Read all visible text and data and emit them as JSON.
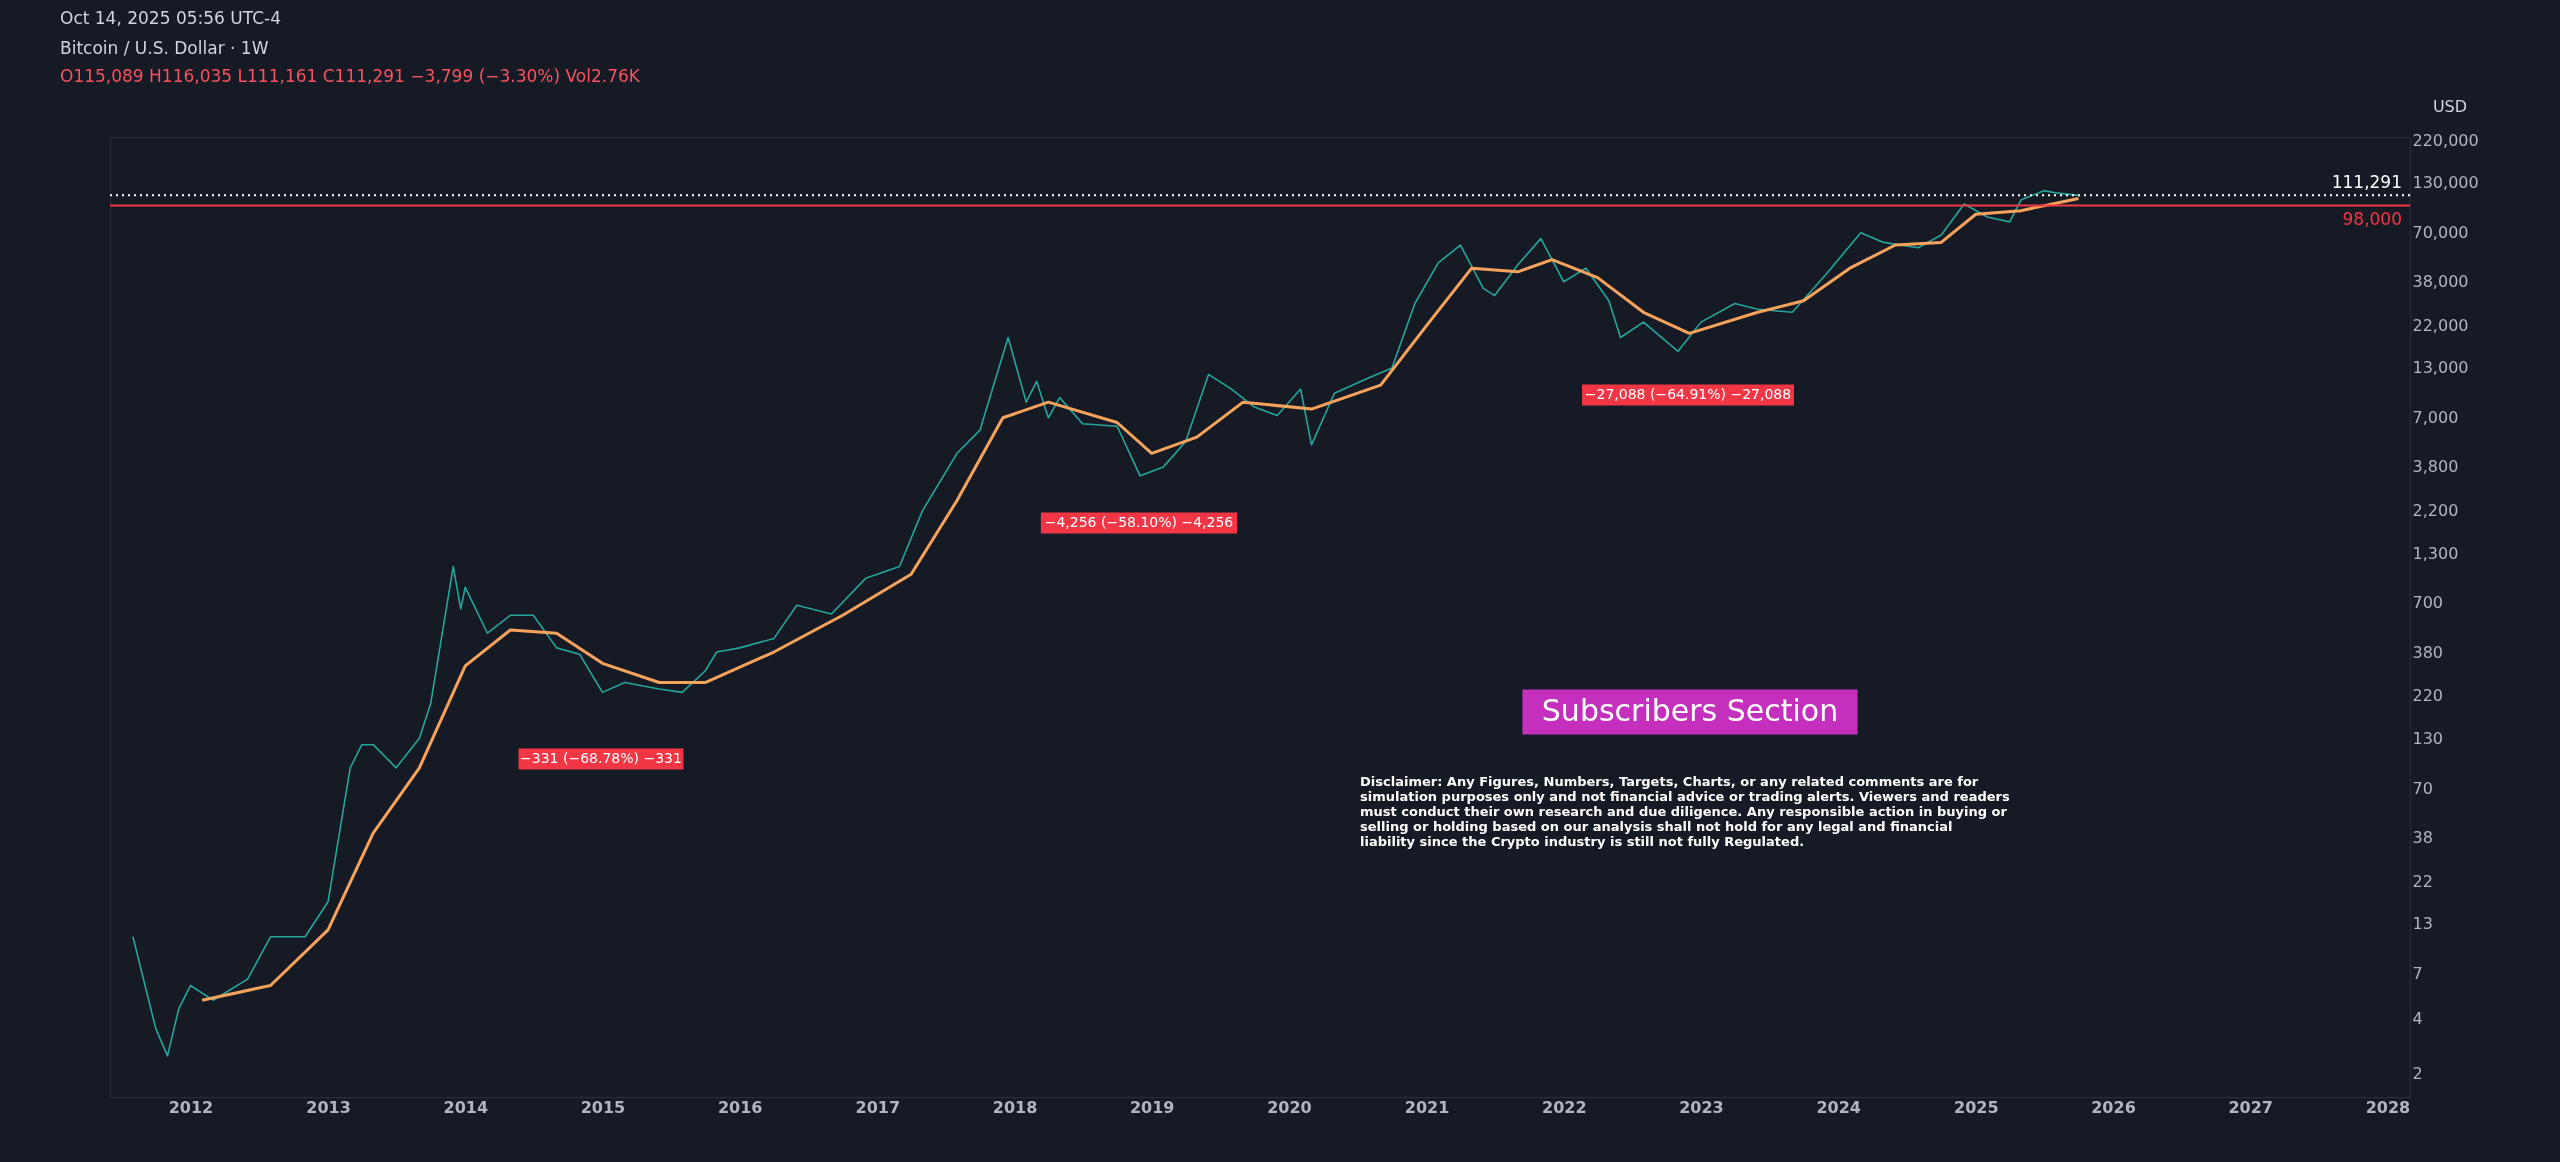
{
  "chart_data": {
    "type": "line",
    "title": "Bitcoin / U.S. Dollar · 1W",
    "subtitle": "O115,089 H116,035 L111,161 C111,291 −3,799 (−3.30%) Vol2.76K",
    "annotations": [
      "Oct 14, 2025 05:56 UTC-4",
      "USD",
      "Subscribers Section",
      "Disclaimer: Any Figures, Numbers, Targets, Charts, or any related comments are for simulation purposes only and not financial advice or trading alerts. Viewers and readers must conduct their own research and due diligence. Any responsible action in buying or selling or holding based on our analysis shall not hold for any legal and financial liability since the Crypto industry is still not fully Regulated.",
      "−331 (−68.78%) −331",
      "−4,256 (−58.10%) −4,256",
      "−27,088 (−64.91%) −27,088"
    ],
    "log": true,
    "grid": false,
    "line_style": "solid",
    "marker": "none",
    "xlim": [
      "2011-06",
      "2028-03"
    ],
    "xticks": [
      "2012",
      "2013",
      "2014",
      "2015",
      "2016",
      "2017",
      "2018",
      "2019",
      "2020",
      "2021",
      "2022",
      "2023",
      "2024",
      "2025",
      "2026",
      "2027",
      "2028"
    ],
    "ylim": [
      1.5,
      230000
    ],
    "yticks": [
      2,
      4,
      7,
      13,
      22,
      38,
      70,
      130,
      220,
      380,
      700,
      {
        "value": 1300,
        "label": "1,300"
      },
      {
        "value": 2200,
        "label": "2,200"
      },
      {
        "value": 3800,
        "label": "3,800"
      },
      {
        "value": 7000,
        "label": "7,000"
      },
      {
        "value": 13000,
        "label": "13,000"
      },
      {
        "value": 22000,
        "label": "22,000"
      },
      {
        "value": 38000,
        "label": "38,000"
      },
      {
        "value": 70000,
        "label": "70,000"
      },
      {
        "value": 130000,
        "label": "130,000"
      },
      {
        "value": 220000,
        "label": "220,000"
      }
    ],
    "ref_lines": [
      {
        "axis": "y",
        "value": 111291,
        "label": "111,291",
        "color": "#ffffff",
        "line_style": "dotted"
      },
      {
        "axis": "y",
        "value": 98000,
        "label": "98,000",
        "color": "#f23645",
        "line_style": "solid"
      }
    ],
    "series": [
      {
        "color": "#26a69a",
        "x": [
          "2011-08",
          "2011-10",
          "2011-11",
          "2011-12",
          "2012-01",
          "2012-03",
          "2012-06",
          "2012-08",
          "2012-11",
          "2013-01",
          "2013-03",
          "2013-04",
          "2013-05",
          "2013-07",
          "2013-09",
          "2013-10",
          "2013-11-30",
          "2013-12-20",
          "2014-01",
          "2014-03",
          "2014-05",
          "2014-07",
          "2014-09",
          "2014-11",
          "2015-01",
          "2015-03",
          "2015-06",
          "2015-08",
          "2015-10",
          "2015-11",
          "2016-01",
          "2016-04",
          "2016-06",
          "2016-09",
          "2016-12",
          "2017-03",
          "2017-05",
          "2017-08",
          "2017-10",
          "2017-12-15",
          "2018-02",
          "2018-03",
          "2018-04",
          "2018-05",
          "2018-07",
          "2018-10",
          "2018-12",
          "2019-02",
          "2019-04",
          "2019-06",
          "2019-08",
          "2019-10",
          "2019-12",
          "2020-02",
          "2020-03",
          "2020-05",
          "2020-08",
          "2020-10",
          "2020-12",
          "2021-02",
          "2021-04",
          "2021-06",
          "2021-07",
          "2021-09",
          "2021-11",
          "2022-01",
          "2022-03",
          "2022-05",
          "2022-06",
          "2022-08",
          "2022-11",
          "2023-01",
          "2023-04",
          "2023-06",
          "2023-09",
          "2023-12",
          "2024-03",
          "2024-05",
          "2024-08",
          "2024-10",
          "2024-12",
          "2025-02",
          "2025-04",
          "2025-05",
          "2025-07",
          "2025-08",
          "2025-10"
        ],
        "values": [
          11,
          3.5,
          2.5,
          4.5,
          6,
          5,
          6.5,
          11,
          11,
          17,
          90,
          120,
          120,
          90,
          130,
          200,
          1100,
          650,
          850,
          480,
          600,
          600,
          400,
          370,
          230,
          260,
          240,
          230,
          300,
          380,
          400,
          450,
          680,
          610,
          950,
          1100,
          2200,
          4500,
          6000,
          19000,
          8500,
          11000,
          7000,
          9000,
          6500,
          6300,
          3400,
          3800,
          5200,
          12000,
          10000,
          8000,
          7200,
          10000,
          5000,
          9500,
          11500,
          13000,
          29000,
          48000,
          60000,
          35000,
          32000,
          47000,
          65000,
          38000,
          45000,
          30000,
          19000,
          23000,
          16000,
          23000,
          29000,
          27000,
          26000,
          42000,
          70000,
          62000,
          58000,
          68000,
          100000,
          85000,
          80000,
          105000,
          118000,
          115000,
          111291
        ]
      },
      {
        "color": "#f7a35c",
        "x": [
          "2012-02",
          "2012-08",
          "2013-01",
          "2013-05",
          "2013-09",
          "2014-01",
          "2014-05",
          "2014-09",
          "2015-01",
          "2015-06",
          "2015-10",
          "2016-04",
          "2016-10",
          "2017-04",
          "2017-08",
          "2017-12",
          "2018-04",
          "2018-10",
          "2019-01",
          "2019-05",
          "2019-09",
          "2020-03",
          "2020-09",
          "2021-01",
          "2021-05",
          "2021-09",
          "2021-12",
          "2022-04",
          "2022-08",
          "2022-12",
          "2023-06",
          "2023-10",
          "2024-02",
          "2024-06",
          "2024-10",
          "2025-01",
          "2025-05",
          "2025-10"
        ],
        "values": [
          5,
          6,
          12,
          40,
          90,
          320,
          500,
          480,
          330,
          260,
          260,
          380,
          600,
          1000,
          2500,
          7000,
          8500,
          6600,
          4500,
          5500,
          8500,
          7800,
          10500,
          22000,
          45000,
          43000,
          50000,
          40000,
          26000,
          20000,
          26000,
          30000,
          45000,
          60000,
          62000,
          88000,
          92000,
          107000
        ]
      }
    ]
  }
}
